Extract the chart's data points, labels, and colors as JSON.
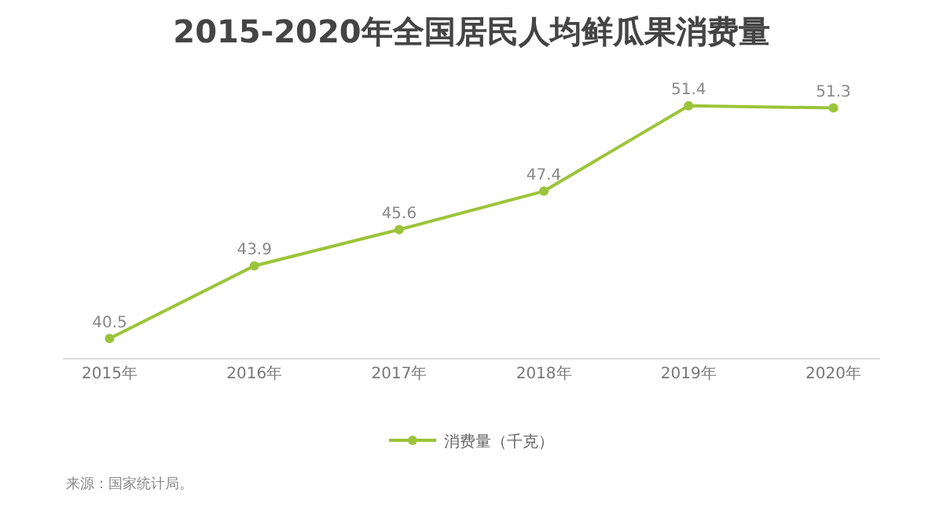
{
  "chart_data": {
    "type": "line",
    "title": "2015-2020年全国居民人均鲜瓜果消费量",
    "categories": [
      "2015年",
      "2016年",
      "2017年",
      "2018年",
      "2019年",
      "2020年"
    ],
    "series": [
      {
        "name": "消费量（千克）",
        "color": "#9cc43a",
        "values": [
          40.5,
          43.9,
          45.6,
          47.4,
          51.4,
          51.3
        ]
      }
    ],
    "data_labels": true,
    "legend": "bottom",
    "marker": "circle",
    "line_style": "solid",
    "grid": false,
    "annotations": [
      "来源：国家统计局。"
    ]
  }
}
